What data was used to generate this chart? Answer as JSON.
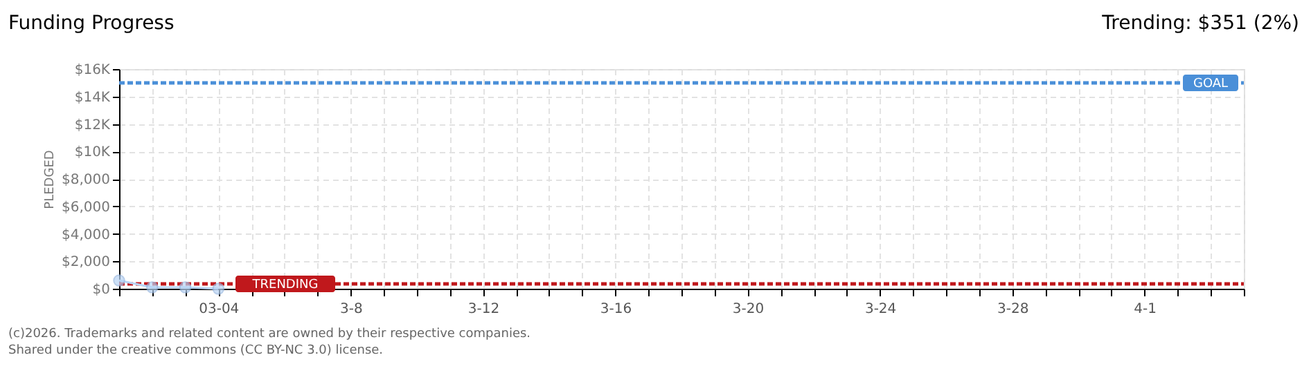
{
  "chart_data": {
    "type": "line",
    "title": "Funding Progress",
    "ylabel": "PLEDGED",
    "x": [
      "2026-03-01",
      "2026-03-02",
      "2026-03-03",
      "2026-03-04"
    ],
    "series": [
      {
        "color": "#b8d4f4",
        "values": [
          600,
          100,
          100,
          0
        ]
      }
    ],
    "marker": "circle",
    "line_style": "solid",
    "grid": true,
    "xlim": [
      "2026-03-01",
      "2026-04-04"
    ],
    "xticks": [
      {
        "value": "2026-03-01",
        "label": null
      },
      {
        "value": "2026-03-02",
        "label": null
      },
      {
        "value": "2026-03-03",
        "label": null
      },
      {
        "value": "2026-03-04",
        "label": "03-04"
      },
      {
        "value": "2026-03-05",
        "label": null
      },
      {
        "value": "2026-03-06",
        "label": null
      },
      {
        "value": "2026-03-07",
        "label": null
      },
      {
        "value": "2026-03-08",
        "label": "3-8"
      },
      {
        "value": "2026-03-09",
        "label": null
      },
      {
        "value": "2026-03-10",
        "label": null
      },
      {
        "value": "2026-03-11",
        "label": null
      },
      {
        "value": "2026-03-12",
        "label": "3-12"
      },
      {
        "value": "2026-03-13",
        "label": null
      },
      {
        "value": "2026-03-14",
        "label": null
      },
      {
        "value": "2026-03-15",
        "label": null
      },
      {
        "value": "2026-03-16",
        "label": "3-16"
      },
      {
        "value": "2026-03-17",
        "label": null
      },
      {
        "value": "2026-03-18",
        "label": null
      },
      {
        "value": "2026-03-19",
        "label": null
      },
      {
        "value": "2026-03-20",
        "label": "3-20"
      },
      {
        "value": "2026-03-21",
        "label": null
      },
      {
        "value": "2026-03-22",
        "label": null
      },
      {
        "value": "2026-03-23",
        "label": null
      },
      {
        "value": "2026-03-24",
        "label": "3-24"
      },
      {
        "value": "2026-03-25",
        "label": null
      },
      {
        "value": "2026-03-26",
        "label": null
      },
      {
        "value": "2026-03-27",
        "label": null
      },
      {
        "value": "2026-03-28",
        "label": "3-28"
      },
      {
        "value": "2026-03-29",
        "label": null
      },
      {
        "value": "2026-03-30",
        "label": null
      },
      {
        "value": "2026-03-31",
        "label": null
      },
      {
        "value": "2026-04-01",
        "label": "4-1"
      },
      {
        "value": "2026-04-02",
        "label": null
      },
      {
        "value": "2026-04-03",
        "label": null
      },
      {
        "value": "2026-04-04",
        "label": null
      }
    ],
    "ylim": [
      0,
      16000
    ],
    "yticks": [
      {
        "value": 0,
        "label": "$0"
      },
      {
        "value": 2000,
        "label": "$2,000"
      },
      {
        "value": 4000,
        "label": "$4,000"
      },
      {
        "value": 6000,
        "label": "$6,000"
      },
      {
        "value": 8000,
        "label": "$8,000"
      },
      {
        "value": 10000,
        "label": "$10K"
      },
      {
        "value": 12000,
        "label": "$12K"
      },
      {
        "value": 14000,
        "label": "$14K"
      },
      {
        "value": 16000,
        "label": "$16K"
      }
    ],
    "ref_lines": [
      {
        "axis": "y",
        "value": 15000,
        "label": "GOAL",
        "color": "#4a8fd8",
        "line_style": "dashed"
      },
      {
        "axis": "y",
        "value": 351,
        "label": "TRENDING",
        "color": "#c0181c",
        "line_style": "dashed"
      }
    ],
    "annotations": [
      "Trending: $351 (2%)",
      "(c)2026. Trademarks and related content are owned by their respective companies.",
      "Shared under the creative commons (CC BY-NC 3.0) license."
    ]
  }
}
